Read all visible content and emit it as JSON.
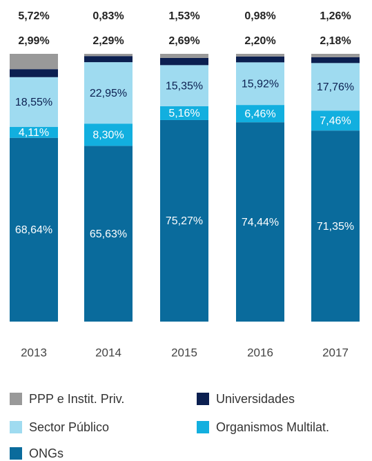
{
  "chart_data": {
    "type": "stacked_bar",
    "categories": [
      "2013",
      "2014",
      "2015",
      "2016",
      "2017"
    ],
    "series": [
      {
        "name": "ONGs",
        "color": "#0a6b9c",
        "values": [
          68.64,
          65.63,
          75.27,
          74.44,
          71.35
        ],
        "value_labels": [
          "68,64%",
          "65,63%",
          "75,27%",
          "74,44%",
          "71,35%"
        ]
      },
      {
        "name": "Organismos Multilat.",
        "color": "#12afdf",
        "values": [
          4.11,
          8.3,
          5.16,
          6.46,
          7.46
        ],
        "value_labels": [
          "4,11%",
          "8,30%",
          "5,16%",
          "6,46%",
          "7,46%"
        ]
      },
      {
        "name": "Sector Público",
        "color": "#9fdbf0",
        "values": [
          18.55,
          22.95,
          15.35,
          15.92,
          17.76
        ],
        "value_labels": [
          "18,55%",
          "22,95%",
          "15,35%",
          "15,92%",
          "17,76%"
        ]
      },
      {
        "name": "Universidades",
        "color": "#0b1f50",
        "values": [
          2.99,
          2.29,
          2.69,
          2.2,
          2.18
        ],
        "value_labels": [
          "2,99%",
          "2,29%",
          "2,69%",
          "2,20%",
          "2,18%"
        ]
      },
      {
        "name": "PPP e Instit. Priv.",
        "color": "#999999",
        "values": [
          5.72,
          0.83,
          1.53,
          0.98,
          1.26
        ],
        "value_labels": [
          "5,72%",
          "0,83%",
          "1,53%",
          "0,98%",
          "1,26%"
        ]
      }
    ]
  }
}
